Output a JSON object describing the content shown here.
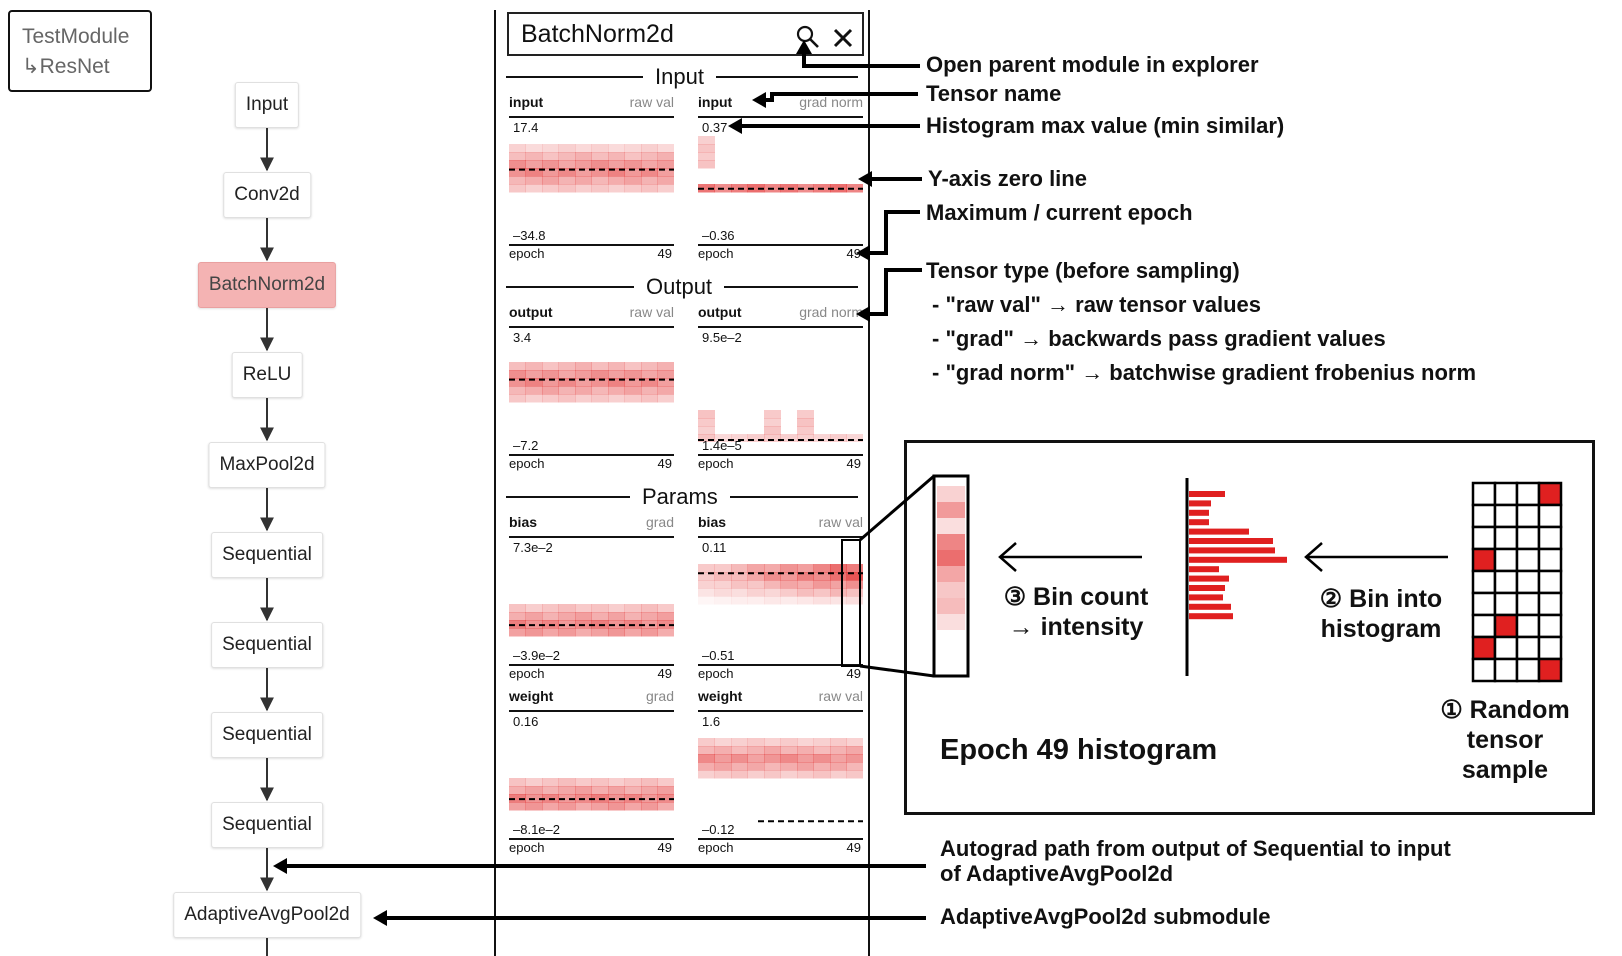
{
  "breadcrumb": {
    "root": "TestModule",
    "child": "ResNet",
    "child_prefix": "↳"
  },
  "graph": {
    "nodes": [
      "Input",
      "Conv2d",
      "BatchNorm2d",
      "ReLU",
      "MaxPool2d",
      "Sequential",
      "Sequential",
      "Sequential",
      "Sequential",
      "AdaptiveAvgPool2d"
    ],
    "selected_index": 2
  },
  "panel": {
    "search_value": "BatchNorm2d",
    "sections": {
      "input": "Input",
      "output": "Output",
      "params": "Params"
    },
    "histograms": [
      {
        "name": "input",
        "type": "raw val",
        "max": "17.4",
        "min": "–34.8",
        "epoch_label": "epoch",
        "epoch_max": "49"
      },
      {
        "name": "input",
        "type": "grad norm",
        "max": "0.37",
        "min": "–0.36",
        "epoch_label": "epoch",
        "epoch_max": "49"
      },
      {
        "name": "output",
        "type": "raw val",
        "max": "3.4",
        "min": "–7.2",
        "epoch_label": "epoch",
        "epoch_max": "49"
      },
      {
        "name": "output",
        "type": "grad norm",
        "max": "9.5e–2",
        "min": "1.4e–5",
        "epoch_label": "epoch",
        "epoch_max": "49"
      },
      {
        "name": "bias",
        "type": "grad",
        "max": "7.3e–2",
        "min": "–3.9e–2",
        "epoch_label": "epoch",
        "epoch_max": "49"
      },
      {
        "name": "bias",
        "type": "raw val",
        "max": "0.11",
        "min": "–0.51",
        "epoch_label": "epoch",
        "epoch_max": "49"
      },
      {
        "name": "weight",
        "type": "grad",
        "max": "0.16",
        "min": "–8.1e–2",
        "epoch_label": "epoch",
        "epoch_max": "49"
      },
      {
        "name": "weight",
        "type": "raw val",
        "max": "1.6",
        "min": "–0.12",
        "epoch_label": "epoch",
        "epoch_max": "49"
      }
    ]
  },
  "annotations": {
    "open_parent": "Open parent module in explorer",
    "tensor_name": "Tensor name",
    "hist_max": "Histogram max value (min similar)",
    "zero_line": "Y-axis zero line",
    "max_epoch": "Maximum / current epoch",
    "tensor_type": "Tensor type (before sampling)",
    "type_raw": "- \"raw val\" → raw tensor values",
    "type_grad": "- \"grad\" → backwards pass gradient values",
    "type_gradnorm": "- \"grad norm\" → batchwise gradient frobenius norm",
    "autograd_1": "Autograd path from output of Sequential to input",
    "autograd_2": "of AdaptiveAvgPool2d",
    "submodule": "AdaptiveAvgPool2d submodule"
  },
  "inset": {
    "step3_1": "③ Bin count",
    "step3_2": "→ intensity",
    "step2_1": "② Bin into",
    "step2_2": "histogram",
    "step1_1": "① Random",
    "step1_2": "tensor",
    "step1_3": "sample",
    "epoch_title": "Epoch 49 histogram"
  },
  "colors": {
    "accent": "#e02020",
    "selected_node": "#f4b3b3"
  }
}
